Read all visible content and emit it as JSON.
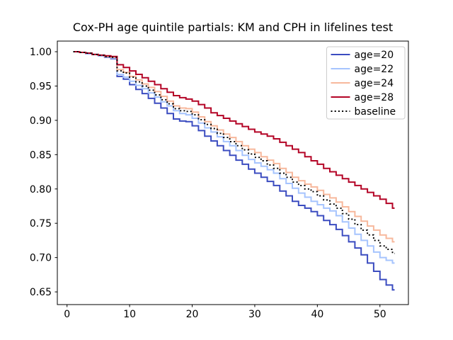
{
  "chart_data": {
    "type": "line",
    "subtype": "km-survival-step",
    "title": "Cox-PH age quintile partials: KM and CPH in lifelines test",
    "xlabel": "",
    "ylabel": "",
    "grid": false,
    "legend_position": "upper right",
    "xlim": [
      -1.55,
      54.55
    ],
    "ylim": [
      0.6315,
      1.0155
    ],
    "xticks": [
      0,
      10,
      20,
      30,
      40,
      50
    ],
    "xtick_labels": [
      "0",
      "10",
      "20",
      "30",
      "40",
      "50"
    ],
    "ytick_values": [
      0.65,
      0.7,
      0.75,
      0.8,
      0.85,
      0.9,
      0.95,
      1.0
    ],
    "ytick_labels": [
      "0.65",
      "0.70",
      "0.75",
      "0.80",
      "0.85",
      "0.90",
      "0.95",
      "1.00"
    ],
    "step_mode": "post",
    "x": [
      1,
      2,
      3,
      4,
      5,
      6,
      7,
      8,
      9,
      10,
      11,
      12,
      13,
      14,
      15,
      16,
      17,
      18,
      19,
      20,
      21,
      22,
      23,
      24,
      25,
      26,
      27,
      28,
      29,
      30,
      31,
      32,
      33,
      34,
      35,
      36,
      37,
      38,
      39,
      40,
      41,
      42,
      43,
      44,
      45,
      46,
      47,
      48,
      49,
      50,
      51,
      52
    ],
    "series": [
      {
        "name": "age=20",
        "color": "#3b4cc0",
        "dotted": false,
        "values": [
          1.0,
          0.999,
          0.997,
          0.996,
          0.994,
          0.992,
          0.99,
          0.964,
          0.96,
          0.952,
          0.945,
          0.939,
          0.932,
          0.925,
          0.918,
          0.91,
          0.902,
          0.899,
          0.898,
          0.892,
          0.885,
          0.877,
          0.87,
          0.863,
          0.856,
          0.849,
          0.842,
          0.836,
          0.829,
          0.823,
          0.817,
          0.811,
          0.805,
          0.797,
          0.79,
          0.782,
          0.776,
          0.772,
          0.767,
          0.761,
          0.754,
          0.748,
          0.741,
          0.732,
          0.723,
          0.714,
          0.704,
          0.692,
          0.68,
          0.668,
          0.66,
          0.653
        ]
      },
      {
        "name": "age=22",
        "color": "#a6c4fe",
        "dotted": false,
        "values": [
          1.0,
          0.999,
          0.997,
          0.996,
          0.994,
          0.993,
          0.991,
          0.967,
          0.963,
          0.957,
          0.951,
          0.946,
          0.94,
          0.934,
          0.927,
          0.921,
          0.914,
          0.91,
          0.908,
          0.903,
          0.896,
          0.889,
          0.883,
          0.876,
          0.869,
          0.863,
          0.856,
          0.849,
          0.843,
          0.838,
          0.833,
          0.828,
          0.823,
          0.815,
          0.808,
          0.801,
          0.794,
          0.788,
          0.782,
          0.777,
          0.772,
          0.768,
          0.761,
          0.752,
          0.743,
          0.734,
          0.725,
          0.717,
          0.708,
          0.7,
          0.696,
          0.692
        ]
      },
      {
        "name": "age=24",
        "color": "#f7b89c",
        "dotted": false,
        "values": [
          1.0,
          0.999,
          0.998,
          0.996,
          0.995,
          0.993,
          0.992,
          0.974,
          0.97,
          0.964,
          0.959,
          0.953,
          0.948,
          0.942,
          0.935,
          0.928,
          0.921,
          0.918,
          0.917,
          0.912,
          0.905,
          0.898,
          0.892,
          0.886,
          0.88,
          0.875,
          0.869,
          0.863,
          0.858,
          0.853,
          0.847,
          0.842,
          0.837,
          0.83,
          0.824,
          0.817,
          0.812,
          0.807,
          0.803,
          0.798,
          0.792,
          0.787,
          0.781,
          0.774,
          0.767,
          0.76,
          0.753,
          0.746,
          0.74,
          0.733,
          0.728,
          0.723
        ]
      },
      {
        "name": "age=28",
        "color": "#b40426",
        "dotted": false,
        "values": [
          1.0,
          0.999,
          0.998,
          0.996,
          0.995,
          0.994,
          0.993,
          0.981,
          0.977,
          0.972,
          0.967,
          0.962,
          0.957,
          0.952,
          0.946,
          0.941,
          0.936,
          0.933,
          0.931,
          0.928,
          0.923,
          0.918,
          0.911,
          0.907,
          0.903,
          0.899,
          0.895,
          0.891,
          0.887,
          0.883,
          0.88,
          0.877,
          0.873,
          0.868,
          0.863,
          0.858,
          0.853,
          0.847,
          0.841,
          0.836,
          0.83,
          0.825,
          0.82,
          0.815,
          0.81,
          0.805,
          0.8,
          0.795,
          0.79,
          0.785,
          0.779,
          0.772
        ]
      },
      {
        "name": "baseline",
        "color": "#000000",
        "dotted": true,
        "values": [
          1.0,
          0.999,
          0.998,
          0.996,
          0.995,
          0.993,
          0.992,
          0.972,
          0.969,
          0.963,
          0.956,
          0.95,
          0.944,
          0.937,
          0.93,
          0.924,
          0.917,
          0.914,
          0.913,
          0.908,
          0.901,
          0.894,
          0.888,
          0.881,
          0.875,
          0.869,
          0.863,
          0.857,
          0.851,
          0.846,
          0.841,
          0.835,
          0.83,
          0.823,
          0.817,
          0.81,
          0.805,
          0.8,
          0.796,
          0.79,
          0.784,
          0.778,
          0.772,
          0.764,
          0.756,
          0.748,
          0.74,
          0.733,
          0.725,
          0.717,
          0.712,
          0.706
        ]
      }
    ],
    "colors": {
      "spine": "#000000",
      "background": "#ffffff",
      "legend_border": "#cccccc",
      "legend_fill": "#ffffff"
    }
  }
}
